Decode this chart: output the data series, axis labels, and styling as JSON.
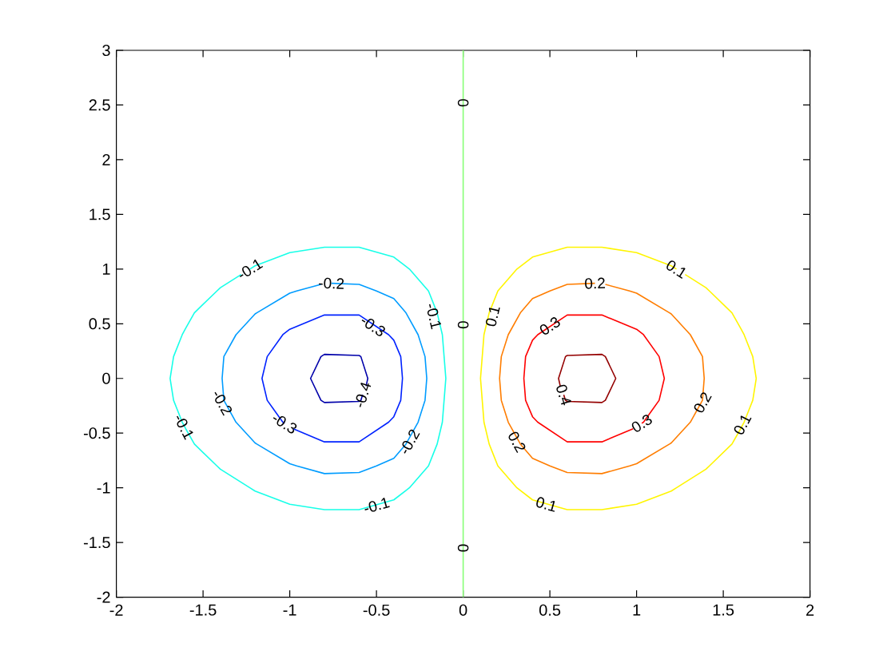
{
  "chart_data": {
    "type": "line",
    "xlim": [
      -2,
      2
    ],
    "ylim": [
      -2,
      3
    ],
    "xticks": [
      -2,
      -1.5,
      -1,
      -0.5,
      0,
      0.5,
      1,
      1.5,
      2
    ],
    "yticks": [
      -2,
      -1.5,
      -1,
      -0.5,
      0,
      0.5,
      1,
      1.5,
      2,
      2.5,
      3
    ],
    "series": [
      {
        "color": "#0000aa",
        "x": [
          -0.56,
          -0.55,
          -0.59,
          -0.6,
          -0.8,
          -0.82,
          -0.88,
          -0.82,
          -0.8,
          -0.6,
          -0.59,
          -0.58
        ],
        "values": [
          -0.07,
          0,
          0.2,
          0.21,
          0.22,
          0.2,
          0,
          -0.2,
          -0.22,
          -0.21,
          -0.2,
          -0.15
        ]
      },
      {
        "color": "#0022ff",
        "x": [
          -0.98,
          -0.8,
          -0.6,
          -0.43,
          -0.4,
          -0.36,
          -0.35,
          -0.36,
          -0.4,
          -0.43,
          -0.6,
          -0.8,
          -1.0,
          -1.04,
          -1.13,
          -1.16,
          -1.13,
          -1.04,
          -1.03
        ],
        "values": [
          -0.46,
          -0.58,
          -0.58,
          -0.4,
          -0.35,
          -0.2,
          0,
          0.2,
          0.35,
          0.4,
          0.58,
          0.58,
          0.45,
          0.4,
          0.2,
          0,
          -0.2,
          -0.4,
          -0.41
        ]
      },
      {
        "color": "#009cff",
        "x": [
          -0.82,
          -0.96,
          -1.0,
          -1.19,
          -1.2,
          -1.31,
          -1.38,
          -1.39,
          -1.38,
          -1.31,
          -1.2,
          -1.19,
          -1.0,
          -0.96,
          -0.8,
          -0.6,
          -0.5,
          -0.4,
          -0.33,
          -0.26,
          -0.22,
          -0.21,
          -0.22,
          -0.26,
          -0.33,
          -0.4,
          -0.5,
          -0.6,
          -0.76
        ],
        "values": [
          0.86,
          0.8,
          0.78,
          0.6,
          0.59,
          0.4,
          0.2,
          0,
          -0.2,
          -0.4,
          -0.59,
          -0.6,
          -0.78,
          -0.8,
          -0.87,
          -0.86,
          -0.8,
          -0.73,
          -0.6,
          -0.4,
          -0.2,
          0,
          0.2,
          0.4,
          0.6,
          0.73,
          0.8,
          0.86,
          0.87
        ]
      },
      {
        "color": "#17ffe8",
        "x": [
          -1.28,
          -1.4,
          -1.42,
          -1.55,
          -1.6,
          -1.62,
          -1.67,
          -1.69,
          -1.67,
          -1.62,
          -1.6,
          -1.55,
          -1.42,
          -1.4,
          -1.23,
          -1.2,
          -1.0,
          -0.8,
          -0.6,
          -0.4,
          -0.31,
          -0.2,
          -0.15,
          -0.12,
          -0.11,
          -0.1,
          -0.11,
          -0.12,
          -0.15,
          -0.2,
          -0.31,
          -0.4,
          -0.6,
          -0.8,
          -1.0,
          -1.2,
          -1.23
        ],
        "values": [
          0.95,
          0.83,
          0.8,
          0.6,
          0.46,
          0.4,
          0.2,
          0,
          -0.2,
          -0.4,
          -0.46,
          -0.6,
          -0.8,
          -0.83,
          -1.0,
          -1.03,
          -1.15,
          -1.2,
          -1.2,
          -1.11,
          -1.0,
          -0.8,
          -0.6,
          -0.4,
          -0.2,
          0,
          0.2,
          0.4,
          0.6,
          0.8,
          1.0,
          1.11,
          1.2,
          1.2,
          1.15,
          1.03,
          1.0
        ]
      },
      {
        "color": "#88ff77",
        "x": [
          0,
          0
        ],
        "values": [
          -2,
          3
        ]
      },
      {
        "color": "#fff500",
        "x": [
          1.28,
          1.4,
          1.42,
          1.55,
          1.6,
          1.62,
          1.67,
          1.69,
          1.67,
          1.62,
          1.6,
          1.55,
          1.42,
          1.4,
          1.23,
          1.2,
          1.0,
          0.8,
          0.6,
          0.4,
          0.31,
          0.2,
          0.15,
          0.12,
          0.11,
          0.1,
          0.11,
          0.12,
          0.15,
          0.2,
          0.31,
          0.4,
          0.6,
          0.8,
          1.0,
          1.2,
          1.23
        ],
        "values": [
          0.95,
          0.83,
          0.8,
          0.6,
          0.46,
          0.4,
          0.2,
          0,
          -0.2,
          -0.4,
          -0.46,
          -0.6,
          -0.8,
          -0.83,
          -1.0,
          -1.03,
          -1.15,
          -1.2,
          -1.2,
          -1.11,
          -1.0,
          -0.8,
          -0.6,
          -0.4,
          -0.2,
          0,
          0.2,
          0.4,
          0.6,
          0.8,
          1.0,
          1.11,
          1.2,
          1.2,
          1.15,
          1.03,
          1.0
        ]
      },
      {
        "color": "#ff7d00",
        "x": [
          0.82,
          0.96,
          1.0,
          1.19,
          1.2,
          1.31,
          1.38,
          1.39,
          1.38,
          1.31,
          1.2,
          1.19,
          1.0,
          0.96,
          0.8,
          0.6,
          0.5,
          0.4,
          0.33,
          0.26,
          0.22,
          0.21,
          0.22,
          0.26,
          0.33,
          0.4,
          0.5,
          0.6,
          0.76
        ],
        "values": [
          0.86,
          0.8,
          0.78,
          0.6,
          0.59,
          0.4,
          0.2,
          0,
          -0.2,
          -0.4,
          -0.59,
          -0.6,
          -0.78,
          -0.8,
          -0.87,
          -0.86,
          -0.8,
          -0.73,
          -0.6,
          -0.4,
          -0.2,
          0,
          0.2,
          0.4,
          0.6,
          0.73,
          0.8,
          0.86,
          0.87
        ]
      },
      {
        "color": "#ff0000",
        "x": [
          0.98,
          0.8,
          0.6,
          0.43,
          0.4,
          0.36,
          0.35,
          0.36,
          0.4,
          0.43,
          0.6,
          0.8,
          1.0,
          1.04,
          1.13,
          1.16,
          1.13,
          1.04,
          1.03
        ],
        "values": [
          -0.46,
          -0.58,
          -0.58,
          -0.4,
          -0.35,
          -0.2,
          0,
          0.2,
          0.35,
          0.4,
          0.58,
          0.58,
          0.45,
          0.4,
          0.2,
          0,
          -0.2,
          -0.4,
          -0.41
        ]
      },
      {
        "color": "#940000",
        "x": [
          0.56,
          0.55,
          0.59,
          0.6,
          0.8,
          0.82,
          0.88,
          0.82,
          0.8,
          0.6,
          0.59,
          0.58
        ],
        "values": [
          -0.07,
          0,
          0.2,
          0.21,
          0.22,
          0.2,
          0,
          -0.2,
          -0.22,
          -0.21,
          -0.2,
          -0.15
        ]
      }
    ],
    "annotations": [
      {
        "text": "-0.1",
        "x": -1.23,
        "y": 1.0
      },
      {
        "text": "-0.2",
        "x": -0.76,
        "y": 0.87
      },
      {
        "text": "-0.3",
        "x": -0.52,
        "y": 0.48
      },
      {
        "text": "-0.1",
        "x": -0.17,
        "y": 0.57
      },
      {
        "text": "-0.2",
        "x": -1.39,
        "y": -0.22
      },
      {
        "text": "-0.3",
        "x": -1.03,
        "y": -0.41
      },
      {
        "text": "-0.4",
        "x": -0.58,
        "y": -0.15
      },
      {
        "text": "-0.1",
        "x": -1.61,
        "y": -0.44
      },
      {
        "text": "-0.2",
        "x": -0.31,
        "y": -0.58
      },
      {
        "text": "-0.1",
        "x": -0.5,
        "y": -1.16
      },
      {
        "text": "0",
        "x": 0,
        "y": 2.52
      },
      {
        "text": "0",
        "x": 0,
        "y": 0.49
      },
      {
        "text": "0",
        "x": 0,
        "y": -1.55
      },
      {
        "text": "0.1",
        "x": 1.23,
        "y": 1.0
      },
      {
        "text": "0.2",
        "x": 0.76,
        "y": 0.87
      },
      {
        "text": "0.1",
        "x": 0.17,
        "y": 0.57
      },
      {
        "text": "0.3",
        "x": 0.5,
        "y": 0.48
      },
      {
        "text": "0.4",
        "x": 0.58,
        "y": -0.15
      },
      {
        "text": "0.3",
        "x": 1.03,
        "y": -0.41
      },
      {
        "text": "0.2",
        "x": 1.38,
        "y": -0.22
      },
      {
        "text": "0.1",
        "x": 1.61,
        "y": -0.42
      },
      {
        "text": "0.2",
        "x": 0.31,
        "y": -0.58
      },
      {
        "text": "0.1",
        "x": 0.48,
        "y": -1.15
      }
    ]
  }
}
